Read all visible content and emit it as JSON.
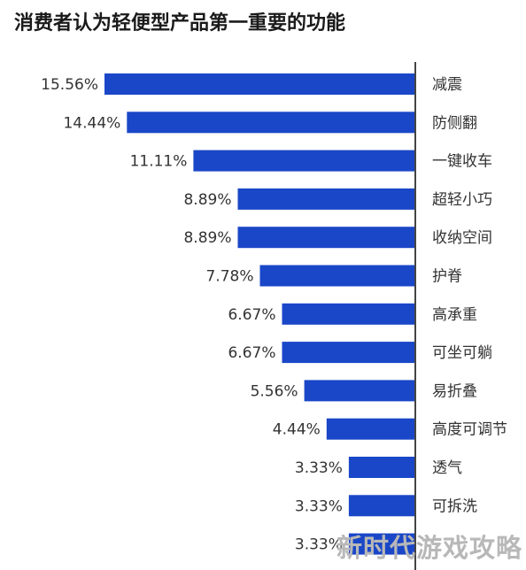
{
  "chart_data": {
    "type": "bar",
    "orientation": "horizontal",
    "title": "消费者认为轻便型产品第一重要的功能",
    "categories": [
      "减震",
      "防侧翻",
      "一键收车",
      "超轻小巧",
      "收纳空间",
      "护脊",
      "高承重",
      "可坐可躺",
      "易折叠",
      "高度可调节",
      "透气",
      "可拆洗",
      ""
    ],
    "values": [
      15.56,
      14.44,
      11.11,
      8.89,
      8.89,
      7.78,
      6.67,
      6.67,
      5.56,
      4.44,
      3.33,
      3.33,
      3.33
    ],
    "value_labels": [
      "15.56%",
      "14.44%",
      "11.11%",
      "8.89%",
      "8.89%",
      "7.78%",
      "6.67%",
      "6.67%",
      "5.56%",
      "4.44%",
      "3.33%",
      "3.33%",
      "3.33%"
    ],
    "xlabel": "",
    "ylabel": "",
    "bar_color": "#1a47c8",
    "axis_color": "#444444",
    "grid": false,
    "legend": "none"
  },
  "watermark": "新时代游戏攻略"
}
